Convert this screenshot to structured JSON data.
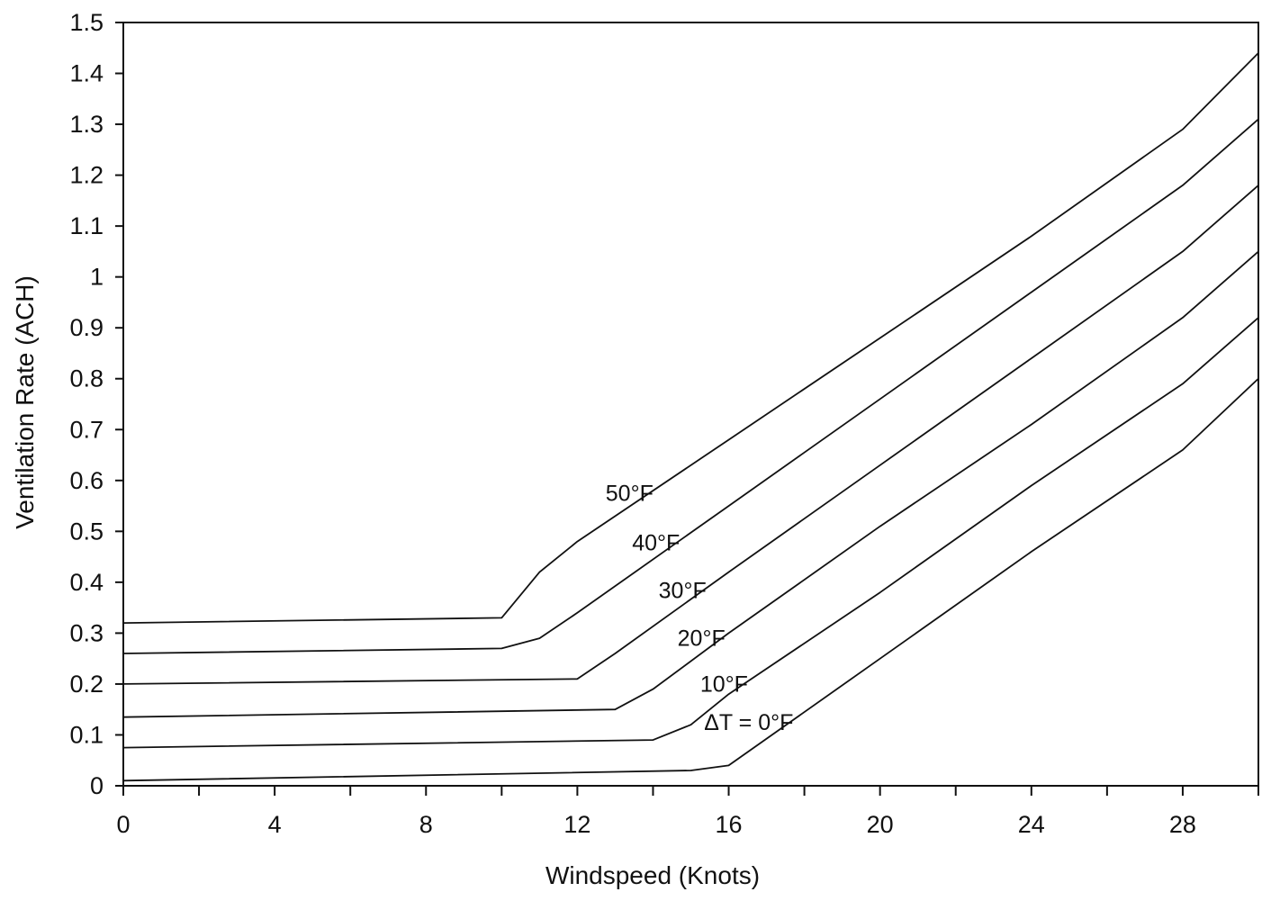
{
  "chart_data": {
    "type": "line",
    "title": "",
    "xlabel": "Windspeed (Knots)",
    "ylabel": "Ventilation Rate (ACH)",
    "xlim": [
      0,
      30
    ],
    "ylim": [
      0,
      1.5
    ],
    "x_ticks": [
      0,
      2,
      4,
      6,
      8,
      10,
      12,
      14,
      16,
      18,
      20,
      22,
      24,
      26,
      28,
      30
    ],
    "x_tick_labels": [
      {
        "value": 0,
        "label": "0"
      },
      {
        "value": 4,
        "label": "4"
      },
      {
        "value": 8,
        "label": "8"
      },
      {
        "value": 12,
        "label": "12"
      },
      {
        "value": 16,
        "label": "16"
      },
      {
        "value": 20,
        "label": "20"
      },
      {
        "value": 24,
        "label": "24"
      },
      {
        "value": 28,
        "label": "28"
      }
    ],
    "y_ticks": [
      {
        "value": 0,
        "label": "0"
      },
      {
        "value": 0.1,
        "label": "0.1"
      },
      {
        "value": 0.2,
        "label": "0.2"
      },
      {
        "value": 0.3,
        "label": "0.3"
      },
      {
        "value": 0.4,
        "label": "0.4"
      },
      {
        "value": 0.5,
        "label": "0.5"
      },
      {
        "value": 0.6,
        "label": "0.6"
      },
      {
        "value": 0.7,
        "label": "0.7"
      },
      {
        "value": 0.8,
        "label": "0.8"
      },
      {
        "value": 0.9,
        "label": "0.9"
      },
      {
        "value": 1.0,
        "label": "1"
      },
      {
        "value": 1.1,
        "label": "1.1"
      },
      {
        "value": 1.2,
        "label": "1.2"
      },
      {
        "value": 1.3,
        "label": "1.3"
      },
      {
        "value": 1.4,
        "label": "1.4"
      },
      {
        "value": 1.5,
        "label": "1.5"
      }
    ],
    "grid": false,
    "legend": "labels placed along each curve",
    "series": [
      {
        "name": "50°F",
        "points": [
          [
            0,
            0.32
          ],
          [
            10,
            0.33
          ],
          [
            11,
            0.42
          ],
          [
            12,
            0.48
          ],
          [
            16,
            0.68
          ],
          [
            20,
            0.88
          ],
          [
            24,
            1.08
          ],
          [
            28,
            1.29
          ],
          [
            30,
            1.44
          ]
        ]
      },
      {
        "name": "40°F",
        "points": [
          [
            0,
            0.26
          ],
          [
            10,
            0.27
          ],
          [
            11,
            0.29
          ],
          [
            12,
            0.34
          ],
          [
            16,
            0.55
          ],
          [
            20,
            0.76
          ],
          [
            24,
            0.97
          ],
          [
            28,
            1.18
          ],
          [
            30,
            1.31
          ]
        ]
      },
      {
        "name": "30°F",
        "points": [
          [
            0,
            0.2
          ],
          [
            12,
            0.21
          ],
          [
            13,
            0.26
          ],
          [
            16,
            0.42
          ],
          [
            20,
            0.63
          ],
          [
            24,
            0.84
          ],
          [
            28,
            1.05
          ],
          [
            30,
            1.18
          ]
        ]
      },
      {
        "name": "20°F",
        "points": [
          [
            0,
            0.135
          ],
          [
            13,
            0.15
          ],
          [
            14,
            0.19
          ],
          [
            16,
            0.3
          ],
          [
            20,
            0.51
          ],
          [
            24,
            0.71
          ],
          [
            28,
            0.92
          ],
          [
            30,
            1.05
          ]
        ]
      },
      {
        "name": "10°F",
        "points": [
          [
            0,
            0.075
          ],
          [
            14,
            0.09
          ],
          [
            15,
            0.12
          ],
          [
            16,
            0.18
          ],
          [
            20,
            0.38
          ],
          [
            24,
            0.59
          ],
          [
            28,
            0.79
          ],
          [
            30,
            0.92
          ]
        ]
      },
      {
        "name": "ΔT = 0°F",
        "points": [
          [
            0,
            0.01
          ],
          [
            15,
            0.03
          ],
          [
            16,
            0.04
          ],
          [
            20,
            0.25
          ],
          [
            24,
            0.46
          ],
          [
            28,
            0.66
          ],
          [
            30,
            0.8
          ]
        ]
      }
    ],
    "annotations": [
      {
        "text": "50°F",
        "series": 0,
        "at_x": 14.2
      },
      {
        "text": "40°F",
        "series": 1,
        "at_x": 14.9
      },
      {
        "text": "30°F",
        "series": 2,
        "at_x": 15.6
      },
      {
        "text": "20°F",
        "series": 3,
        "at_x": 16.1
      },
      {
        "text": "10°F",
        "series": 4,
        "at_x": 16.7
      },
      {
        "text": "ΔT = 0°F",
        "series": 5,
        "at_x": 17.9
      }
    ],
    "colors": {
      "line": "#111111",
      "axis": "#111111",
      "background": "#ffffff"
    }
  }
}
